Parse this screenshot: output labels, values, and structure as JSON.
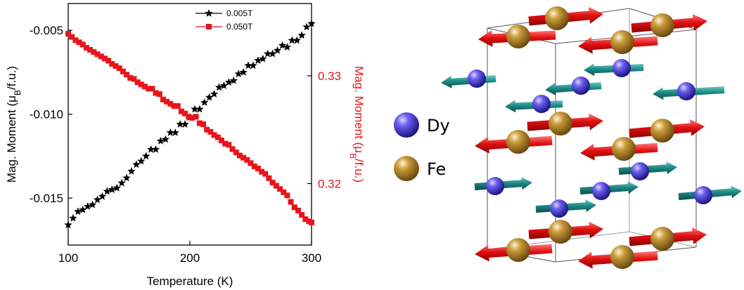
{
  "chart_data": {
    "type": "scatter",
    "xlabel": "Temperature (K)",
    "xlim": [
      100,
      300
    ],
    "x_ticks": [
      "100",
      "200",
      "300"
    ],
    "left_axis": {
      "label_main": "Mag. Moment (",
      "label_mu": "μ",
      "label_sub": "B",
      "label_tail": "/f.u.)",
      "ylim": [
        -0.0178,
        -0.0034
      ],
      "ticks": [
        -0.005,
        -0.01,
        -0.015
      ],
      "tick_labels": [
        "-0.005",
        "-0.010",
        "-0.015"
      ],
      "color": "#000000"
    },
    "right_axis": {
      "label_main": "Mag. Moment (",
      "label_mu": "μ",
      "label_sub": "B",
      "label_tail": "/f.u.)",
      "ylim": [
        0.3143,
        0.3367
      ],
      "ticks": [
        0.33,
        0.32
      ],
      "tick_labels": [
        "0.33",
        "0.32"
      ],
      "color": "#e8141b"
    },
    "legend_position": "top-center",
    "series": [
      {
        "name": "0.005T",
        "axis": "left",
        "marker": "star",
        "color": "#000000",
        "x": [
          100,
          104,
          108,
          112,
          116,
          120,
          124,
          128,
          132,
          136,
          140,
          144,
          148,
          152,
          156,
          160,
          164,
          168,
          172,
          176,
          180,
          184,
          188,
          192,
          196,
          200,
          204,
          208,
          212,
          216,
          220,
          224,
          228,
          232,
          236,
          240,
          244,
          248,
          252,
          256,
          260,
          264,
          268,
          272,
          276,
          280,
          284,
          288,
          292,
          296,
          300
        ],
        "y": [
          -0.0166,
          -0.0162,
          -0.0158,
          -0.0157,
          -0.0155,
          -0.0154,
          -0.0151,
          -0.0149,
          -0.0146,
          -0.0145,
          -0.0144,
          -0.0141,
          -0.0138,
          -0.0134,
          -0.013,
          -0.0128,
          -0.0125,
          -0.0121,
          -0.0121,
          -0.0116,
          -0.0115,
          -0.0111,
          -0.0111,
          -0.0106,
          -0.0106,
          -0.0102,
          -0.0097,
          -0.0097,
          -0.0093,
          -0.009,
          -0.0088,
          -0.0084,
          -0.0083,
          -0.0081,
          -0.008,
          -0.0076,
          -0.0075,
          -0.0071,
          -0.0071,
          -0.0068,
          -0.0067,
          -0.0064,
          -0.0064,
          -0.0062,
          -0.0059,
          -0.006,
          -0.0056,
          -0.0056,
          -0.0053,
          -0.0048,
          -0.0046
        ]
      },
      {
        "name": "0.050T",
        "axis": "right",
        "marker": "square",
        "color": "#e8141b",
        "x": [
          100,
          103,
          106,
          109,
          112,
          115,
          118,
          121,
          124,
          127,
          130,
          133,
          136,
          139,
          142,
          145,
          148,
          151,
          154,
          157,
          160,
          163,
          166,
          169,
          172,
          175,
          178,
          181,
          184,
          187,
          190,
          193,
          196,
          199,
          202,
          205,
          208,
          211,
          214,
          217,
          220,
          223,
          226,
          229,
          232,
          235,
          238,
          241,
          244,
          247,
          250,
          253,
          256,
          259,
          262,
          265,
          268,
          271,
          274,
          277,
          280,
          283,
          286,
          289,
          292,
          295,
          298,
          300
        ],
        "y": [
          0.3339,
          0.3336,
          0.3333,
          0.3331,
          0.3329,
          0.3326,
          0.3324,
          0.3322,
          0.332,
          0.3318,
          0.3316,
          0.3314,
          0.3311,
          0.3309,
          0.3307,
          0.3304,
          0.3301,
          0.3298,
          0.3297,
          0.3294,
          0.3292,
          0.329,
          0.3288,
          0.3288,
          0.3284,
          0.3283,
          0.3278,
          0.3276,
          0.3274,
          0.3272,
          0.3272,
          0.3267,
          0.3265,
          0.3262,
          0.3261,
          0.3262,
          0.3256,
          0.3255,
          0.325,
          0.3248,
          0.3245,
          0.3243,
          0.324,
          0.3237,
          0.3236,
          0.3232,
          0.3229,
          0.3226,
          0.3224,
          0.3222,
          0.3219,
          0.3216,
          0.3214,
          0.3211,
          0.3209,
          0.3205,
          0.3201,
          0.3198,
          0.3195,
          0.3192,
          0.3189,
          0.3183,
          0.3178,
          0.3175,
          0.3171,
          0.3167,
          0.3165,
          0.3164
        ]
      }
    ]
  },
  "structure": {
    "legend": [
      {
        "symbol": "Dy",
        "color": "#4a3fd8"
      },
      {
        "symbol": "Fe",
        "color": "#a07a3c"
      }
    ]
  }
}
